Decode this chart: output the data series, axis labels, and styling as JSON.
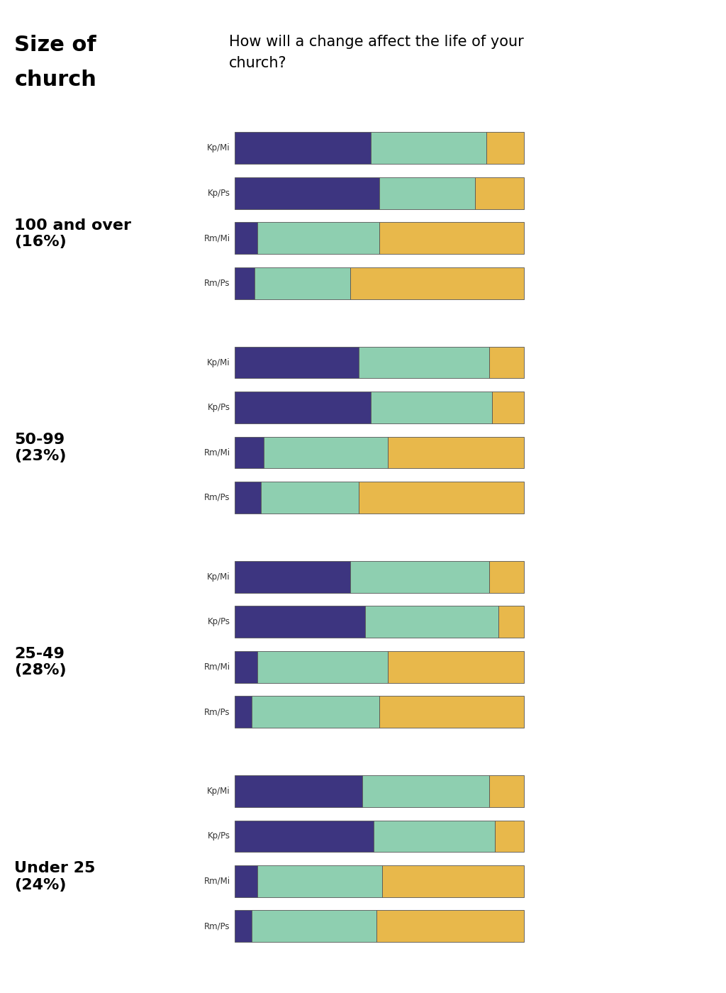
{
  "title_left_line1": "Size of",
  "title_left_line2": "church",
  "title_right": "How will a change affect the life of your\nchurch?",
  "colors": {
    "purple": "#3d3580",
    "mint": "#8ecfb0",
    "gold": "#e8b84b"
  },
  "groups": [
    {
      "label": "Under 25\n(24%)",
      "bars": [
        {
          "name": "Kp/Mi",
          "segments": [
            47,
            40,
            13
          ]
        },
        {
          "name": "Kp/Ps",
          "segments": [
            50,
            33,
            17
          ]
        },
        {
          "name": "Rm/Mi",
          "segments": [
            8,
            42,
            50
          ]
        },
        {
          "name": "Rm/Ps",
          "segments": [
            7,
            33,
            60
          ]
        }
      ]
    },
    {
      "label": "25-49\n(28%)",
      "bars": [
        {
          "name": "Kp/Mi",
          "segments": [
            43,
            45,
            12
          ]
        },
        {
          "name": "Kp/Ps",
          "segments": [
            47,
            42,
            11
          ]
        },
        {
          "name": "Rm/Mi",
          "segments": [
            10,
            43,
            47
          ]
        },
        {
          "name": "Rm/Ps",
          "segments": [
            9,
            34,
            57
          ]
        }
      ]
    },
    {
      "label": "50-99\n(23%)",
      "bars": [
        {
          "name": "Kp/Mi",
          "segments": [
            40,
            48,
            12
          ]
        },
        {
          "name": "Kp/Ps",
          "segments": [
            45,
            46,
            9
          ]
        },
        {
          "name": "Rm/Mi",
          "segments": [
            8,
            45,
            47
          ]
        },
        {
          "name": "Rm/Ps",
          "segments": [
            6,
            44,
            50
          ]
        }
      ]
    },
    {
      "label": "100 and over\n(16%)",
      "bars": [
        {
          "name": "Kp/Mi",
          "segments": [
            44,
            44,
            12
          ]
        },
        {
          "name": "Kp/Ps",
          "segments": [
            48,
            42,
            10
          ]
        },
        {
          "name": "Rm/Mi",
          "segments": [
            8,
            43,
            49
          ]
        },
        {
          "name": "Rm/Ps",
          "segments": [
            6,
            43,
            51
          ]
        }
      ]
    }
  ],
  "background_color": "#ffffff",
  "bar_edgecolor": "#555555",
  "bar_linewidth": 0.6
}
